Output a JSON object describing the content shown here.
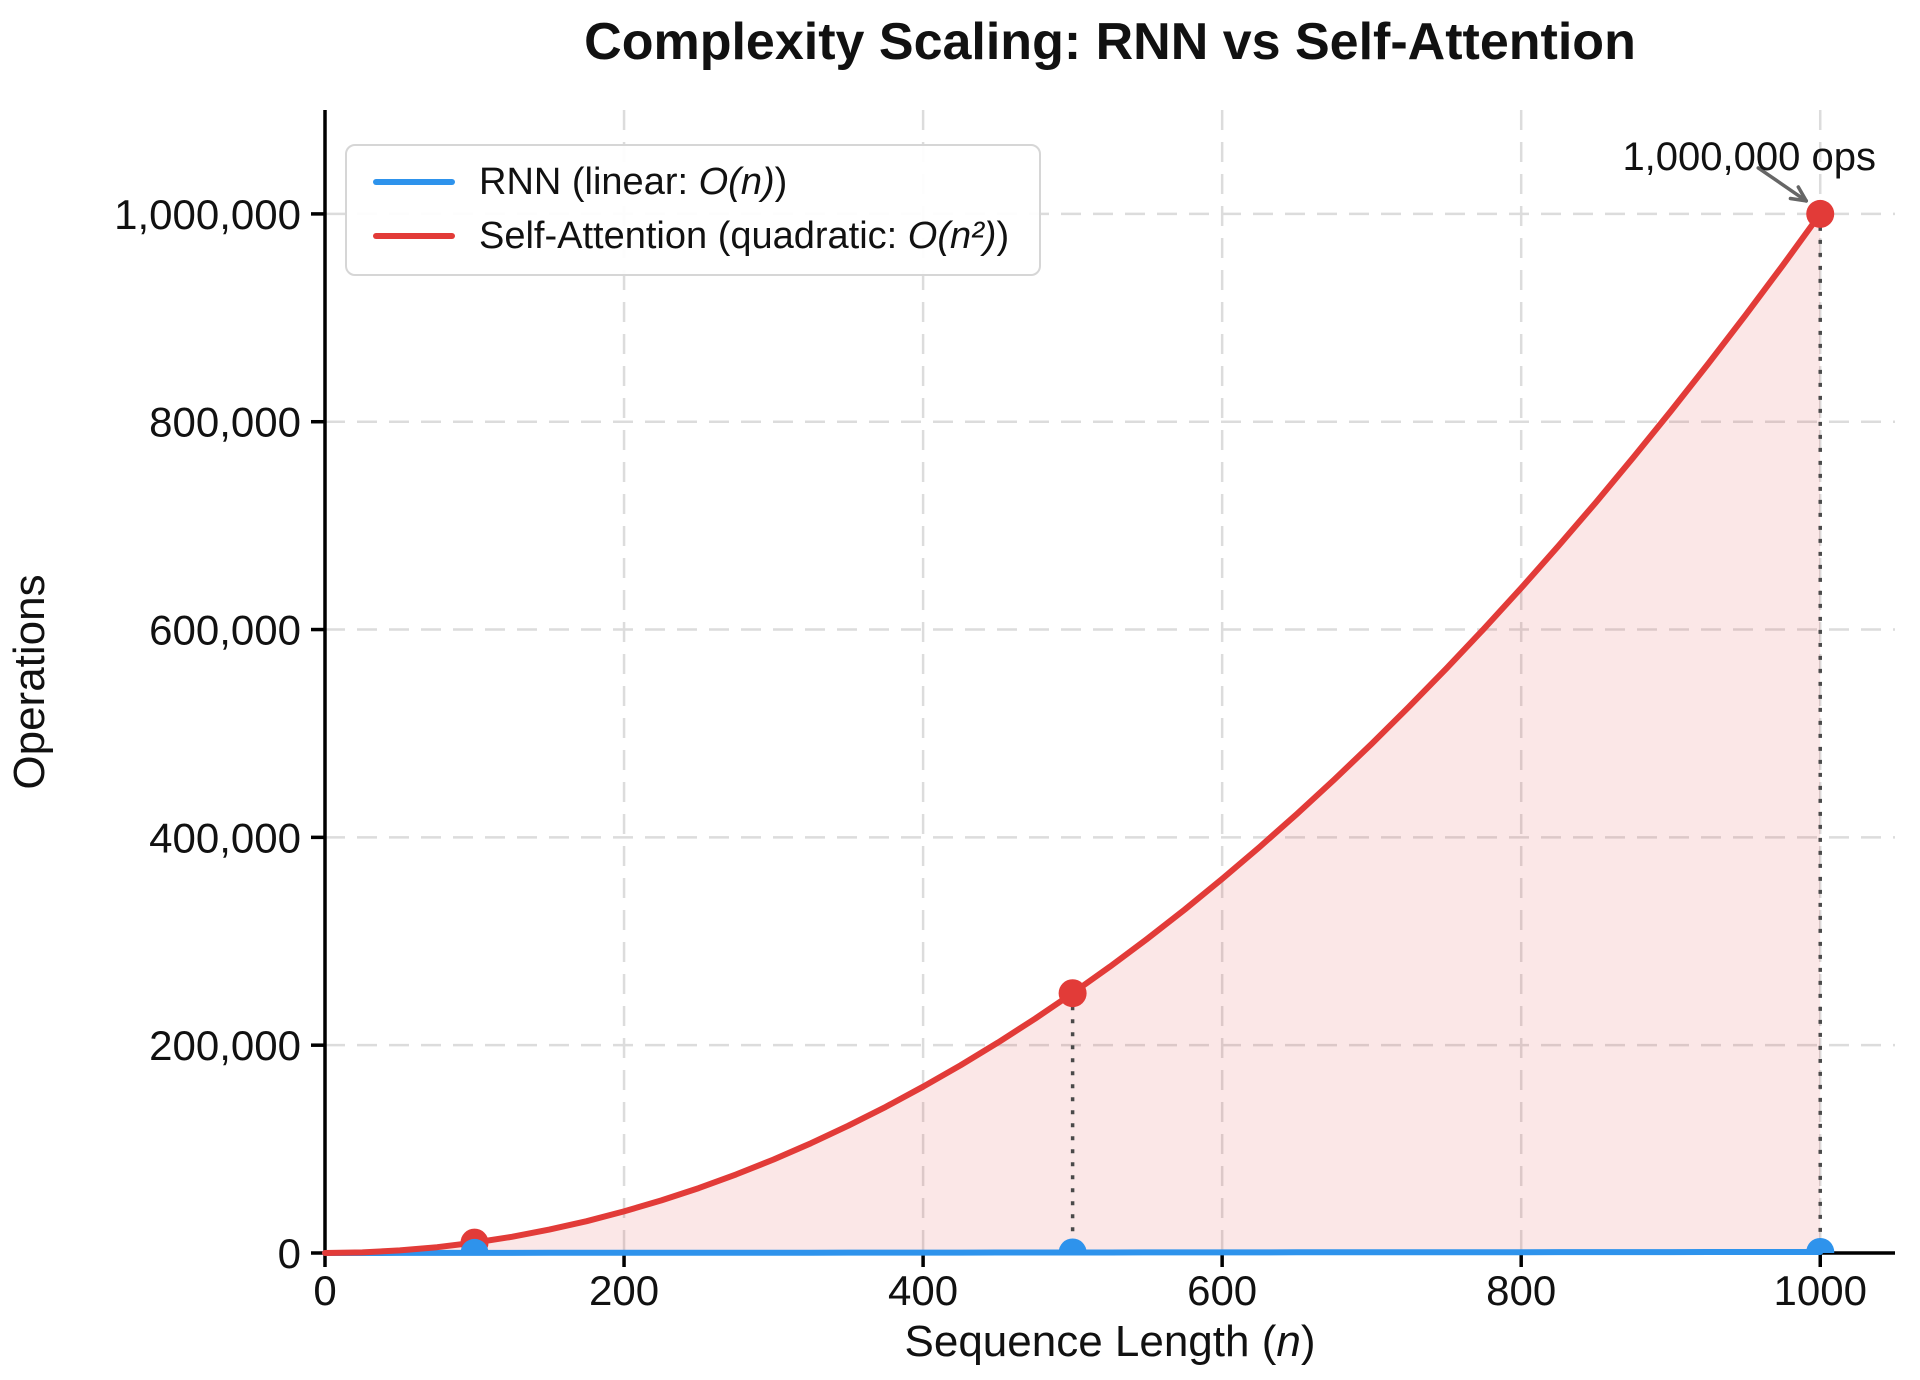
{
  "chart_data": {
    "type": "line",
    "title": "Complexity Scaling: RNN vs Self-Attention",
    "xlabel": {
      "prefix": "Sequence Length (",
      "math": "n",
      "suffix": ")"
    },
    "ylabel": "Operations",
    "xlim": [
      0,
      1050
    ],
    "ylim": [
      0,
      1100000
    ],
    "xticks": [
      0,
      200,
      400,
      600,
      800,
      1000
    ],
    "xtick_labels": [
      "0",
      "200",
      "400",
      "600",
      "800",
      "1000"
    ],
    "yticks": [
      0,
      200000,
      400000,
      600000,
      800000,
      1000000
    ],
    "ytick_labels": [
      "0",
      "200,000",
      "400,000",
      "600,000",
      "800,000",
      "1,000,000"
    ],
    "grid": true,
    "legend_position": "upper left",
    "x_samples": [
      0,
      25,
      50,
      75,
      100,
      125,
      150,
      175,
      200,
      225,
      250,
      275,
      300,
      325,
      350,
      375,
      400,
      425,
      450,
      475,
      500,
      525,
      550,
      575,
      600,
      625,
      650,
      675,
      700,
      725,
      750,
      775,
      800,
      825,
      850,
      875,
      900,
      925,
      950,
      975,
      1000
    ],
    "series": [
      {
        "name_prefix": "RNN (linear: ",
        "name_math": "O(n)",
        "name_suffix": ")",
        "color": "#2E93EC",
        "fill": false,
        "values": [
          0,
          25,
          50,
          75,
          100,
          125,
          150,
          175,
          200,
          225,
          250,
          275,
          300,
          325,
          350,
          375,
          400,
          425,
          450,
          475,
          500,
          525,
          550,
          575,
          600,
          625,
          650,
          675,
          700,
          725,
          750,
          775,
          800,
          825,
          850,
          875,
          900,
          925,
          950,
          975,
          1000
        ]
      },
      {
        "name_prefix": "Self-Attention (quadratic: ",
        "name_math": "O(n²)",
        "name_suffix": ")",
        "color": "#E23B38",
        "fill": true,
        "fill_opacity": 0.12,
        "values": [
          0,
          625,
          2500,
          5625,
          10000,
          15625,
          22500,
          30625,
          40000,
          50625,
          62500,
          75625,
          90000,
          105625,
          122500,
          140625,
          160000,
          180625,
          202500,
          225625,
          250000,
          275625,
          302500,
          330625,
          360000,
          390625,
          422500,
          455625,
          490000,
          525625,
          562500,
          600625,
          640000,
          680625,
          722500,
          765625,
          810000,
          855625,
          902500,
          950625,
          1000000
        ]
      }
    ],
    "key_points": [
      {
        "n": 100,
        "rnn_ops": 100,
        "attention_ops": 10000
      },
      {
        "n": 500,
        "rnn_ops": 500,
        "attention_ops": 250000
      },
      {
        "n": 1000,
        "rnn_ops": 1000,
        "attention_ops": 1000000
      }
    ],
    "annotation": {
      "text": "1,000,000 ops",
      "x": 1000,
      "y": 1000000
    },
    "colors": {
      "grid": "#DCDCDC",
      "spine": "#000000",
      "text": "#111111",
      "stem": "#4a4a4a",
      "arrow": "#666666"
    }
  }
}
